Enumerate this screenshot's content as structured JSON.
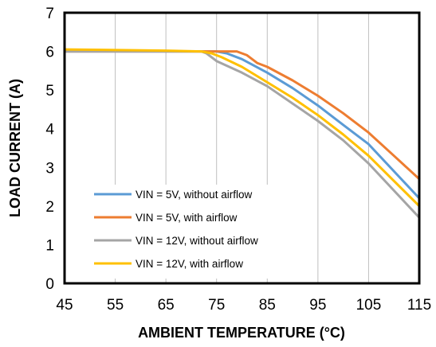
{
  "chart_data": {
    "type": "line",
    "xlabel": "AMBIENT TEMPERATURE (°C)",
    "ylabel": "LOAD CURRENT (A)",
    "xlim": [
      45,
      115
    ],
    "ylim": [
      0,
      7
    ],
    "x_ticks": [
      "45",
      "55",
      "65",
      "75",
      "85",
      "95",
      "105",
      "115"
    ],
    "y_ticks": [
      "0",
      "1",
      "2",
      "3",
      "4",
      "5",
      "6",
      "7"
    ],
    "grid": "vertical",
    "legend_position": "lower-left",
    "series": [
      {
        "name": "VIN = 5V, without airflow",
        "color": "#5B9BD5",
        "x": [
          45,
          65,
          75,
          77,
          80,
          85,
          90,
          95,
          100,
          105,
          110,
          115
        ],
        "y": [
          6.0,
          6.0,
          6.0,
          5.95,
          5.8,
          5.45,
          5.05,
          4.6,
          4.1,
          3.6,
          2.9,
          2.2
        ]
      },
      {
        "name": "VIN = 5V, with airflow",
        "color": "#ED7D31",
        "x": [
          45,
          65,
          75,
          79,
          81,
          83,
          85,
          90,
          95,
          100,
          105,
          110,
          115
        ],
        "y": [
          6.0,
          6.0,
          6.0,
          6.0,
          5.9,
          5.7,
          5.6,
          5.25,
          4.85,
          4.4,
          3.9,
          3.3,
          2.7
        ]
      },
      {
        "name": "VIN = 12V, without airflow",
        "color": "#A5A5A5",
        "x": [
          45,
          65,
          72,
          73,
          75,
          80,
          85,
          90,
          95,
          100,
          105,
          110,
          115
        ],
        "y": [
          6.0,
          6.0,
          6.0,
          5.95,
          5.75,
          5.45,
          5.1,
          4.65,
          4.2,
          3.7,
          3.1,
          2.4,
          1.7
        ]
      },
      {
        "name": "VIN = 12V, with airflow",
        "color": "#FFC000",
        "x": [
          45,
          65,
          72,
          74,
          76,
          80,
          85,
          90,
          95,
          100,
          105,
          110,
          115
        ],
        "y": [
          6.05,
          6.02,
          6.0,
          5.95,
          5.85,
          5.6,
          5.2,
          4.8,
          4.35,
          3.85,
          3.3,
          2.65,
          2.0
        ]
      }
    ]
  }
}
